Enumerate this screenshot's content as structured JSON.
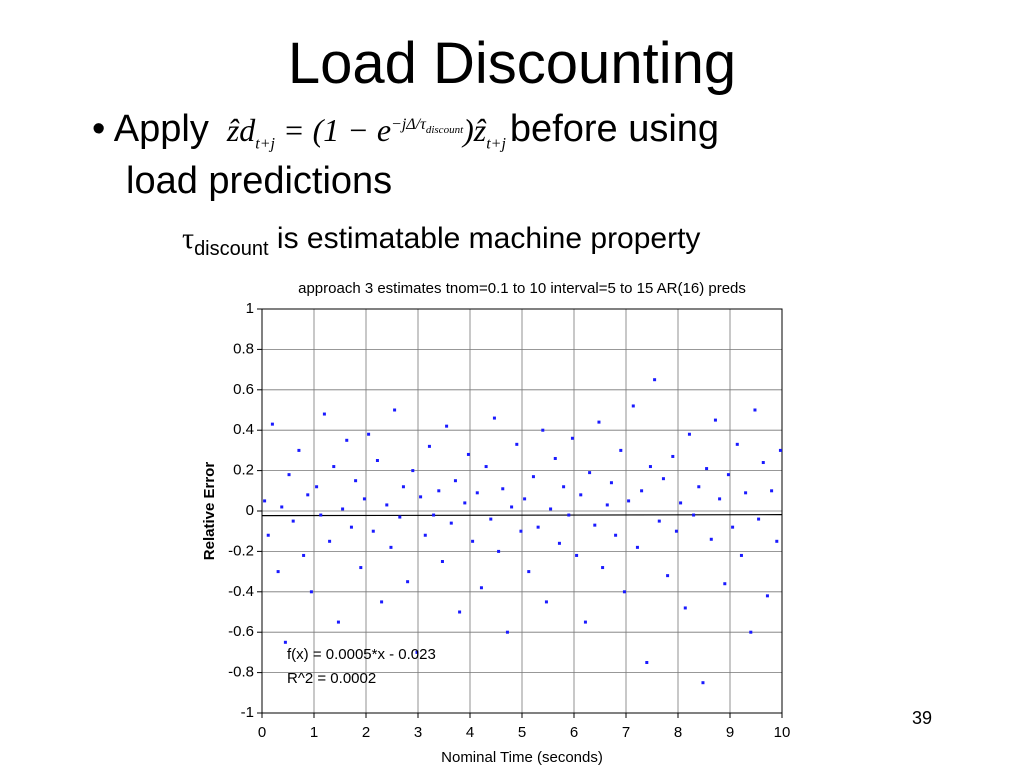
{
  "title": "Load Discounting",
  "bullet": {
    "marker": "•",
    "lead": "Apply",
    "formula": {
      "lhs": "ẑd",
      "lhs_sub": "t+j",
      "mid": "= (1 − e",
      "exp": "−jΔ/τ",
      "exp_sub": "discount",
      "close": ")ẑ",
      "rhs_sub": "t+j"
    },
    "tail": "before using",
    "tail2": "load predictions"
  },
  "sub_bullet": {
    "marker": "",
    "symbol": "τ",
    "subscript": "discount",
    "text": "is estimatable machine property"
  },
  "page_number": "39",
  "chart_data": {
    "type": "scatter",
    "title": "approach 3 estimates  tnom=0.1 to 10 interval=5 to 15 AR(16) preds",
    "x_label": "Nominal Time (seconds)",
    "y_label": "Relative Error",
    "annotations": [
      "f(x) = 0.0005*x - 0.023",
      "R^2 = 0.0002"
    ],
    "fit_line": {
      "slope": 0.0005,
      "intercept": -0.023
    },
    "xlim": [
      0,
      10
    ],
    "ylim": [
      -1,
      1
    ],
    "xticks": [
      0,
      1,
      2,
      3,
      4,
      5,
      6,
      7,
      8,
      9,
      10
    ],
    "yticks": [
      -1,
      -0.8,
      -0.6,
      -0.4,
      -0.2,
      0,
      0.2,
      0.4,
      0.6,
      0.8,
      1
    ],
    "grid": true,
    "color": "#1a1aff",
    "x": [
      0.05,
      0.12,
      0.2,
      0.31,
      0.38,
      0.45,
      0.52,
      0.6,
      0.71,
      0.8,
      0.88,
      0.95,
      1.05,
      1.13,
      1.2,
      1.3,
      1.38,
      1.47,
      1.55,
      1.63,
      1.72,
      1.8,
      1.9,
      1.97,
      2.05,
      2.14,
      2.22,
      2.3,
      2.4,
      2.48,
      2.55,
      2.65,
      2.72,
      2.8,
      2.9,
      2.98,
      3.05,
      3.14,
      3.22,
      3.3,
      3.4,
      3.47,
      3.55,
      3.64,
      3.72,
      3.8,
      3.9,
      3.97,
      4.05,
      4.14,
      4.22,
      4.31,
      4.4,
      4.47,
      4.55,
      4.63,
      4.72,
      4.8,
      4.9,
      4.98,
      5.05,
      5.13,
      5.22,
      5.31,
      5.4,
      5.47,
      5.55,
      5.64,
      5.72,
      5.8,
      5.9,
      5.97,
      6.05,
      6.13,
      6.22,
      6.3,
      6.4,
      6.48,
      6.55,
      6.64,
      6.72,
      6.8,
      6.9,
      6.97,
      7.05,
      7.14,
      7.22,
      7.3,
      7.4,
      7.47,
      7.55,
      7.64,
      7.72,
      7.8,
      7.9,
      7.97,
      8.05,
      8.14,
      8.22,
      8.3,
      8.4,
      8.48,
      8.55,
      8.64,
      8.72,
      8.8,
      8.9,
      8.97,
      9.05,
      9.14,
      9.22,
      9.3,
      9.4,
      9.48,
      9.55,
      9.64,
      9.72,
      9.8,
      9.9,
      9.97
    ],
    "values": [
      0.05,
      -0.12,
      0.43,
      -0.3,
      0.02,
      -0.65,
      0.18,
      -0.05,
      0.3,
      -0.22,
      0.08,
      -0.4,
      0.12,
      -0.02,
      0.48,
      -0.15,
      0.22,
      -0.55,
      0.01,
      0.35,
      -0.08,
      0.15,
      -0.28,
      0.06,
      0.38,
      -0.1,
      0.25,
      -0.45,
      0.03,
      -0.18,
      0.5,
      -0.03,
      0.12,
      -0.35,
      0.2,
      -0.7,
      0.07,
      -0.12,
      0.32,
      -0.02,
      0.1,
      -0.25,
      0.42,
      -0.06,
      0.15,
      -0.5,
      0.04,
      0.28,
      -0.15,
      0.09,
      -0.38,
      0.22,
      -0.04,
      0.46,
      -0.2,
      0.11,
      -0.6,
      0.02,
      0.33,
      -0.1,
      0.06,
      -0.3,
      0.17,
      -0.08,
      0.4,
      -0.45,
      0.01,
      0.26,
      -0.16,
      0.12,
      -0.02,
      0.36,
      -0.22,
      0.08,
      -0.55,
      0.19,
      -0.07,
      0.44,
      -0.28,
      0.03,
      0.14,
      -0.12,
      0.3,
      -0.4,
      0.05,
      0.52,
      -0.18,
      0.1,
      -0.75,
      0.22,
      0.65,
      -0.05,
      0.16,
      -0.32,
      0.27,
      -0.1,
      0.04,
      -0.48,
      0.38,
      -0.02,
      0.12,
      -0.85,
      0.21,
      -0.14,
      0.45,
      0.06,
      -0.36,
      0.18,
      -0.08,
      0.33,
      -0.22,
      0.09,
      -0.6,
      0.5,
      -0.04,
      0.24,
      -0.42,
      0.1,
      -0.15,
      0.3
    ]
  }
}
